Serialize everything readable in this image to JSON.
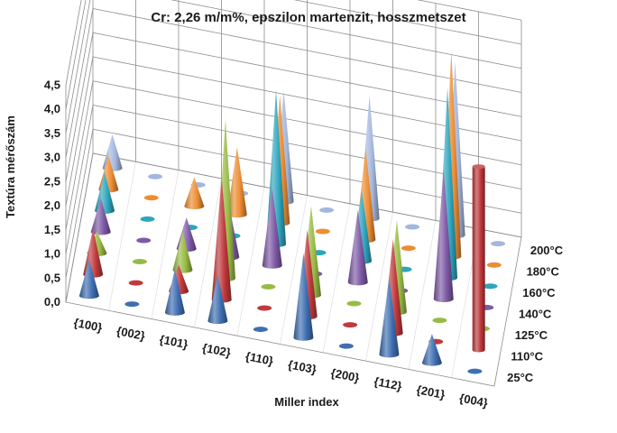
{
  "chart_data": {
    "type": "3d-cone",
    "title": "Cr: 2,26 m/m%, epszilon martenzit, hosszmetszet",
    "xlabel": "Miller index",
    "ylabel": "Textúra mérőszám",
    "categories": [
      "{100}",
      "{002}",
      "{101}",
      "{102}",
      "{110}",
      "{103}",
      "{200}",
      "{112}",
      "{201}",
      "{004}"
    ],
    "ylim": [
      0,
      4.5
    ],
    "yticks": [
      "0,0",
      "0,5",
      "1,0",
      "1,5",
      "2,0",
      "2,5",
      "3,0",
      "3,5",
      "4,0",
      "4,5"
    ],
    "grid": true,
    "series": [
      {
        "name": "25°C",
        "color": "#3f6fb2",
        "values": [
          0.75,
          0.05,
          0.9,
          0.95,
          0.05,
          1.75,
          0.05,
          1.6,
          0.6,
          0.05
        ]
      },
      {
        "name": "110°C",
        "color": "#c0393b",
        "values": [
          0.95,
          0.05,
          0.55,
          2.55,
          0.05,
          1.8,
          0.05,
          1.95,
          0.05,
          3.8
        ]
      },
      {
        "name": "125°C",
        "color": "#98bb45",
        "values": [
          0.45,
          0.05,
          0.8,
          3.3,
          0.05,
          1.85,
          0.05,
          1.9,
          0.05,
          0.05
        ]
      },
      {
        "name": "140°C",
        "color": "#7e5aa6",
        "values": [
          0.7,
          0.05,
          0.65,
          1.05,
          1.6,
          0.05,
          1.5,
          0.05,
          2.7,
          0.05
        ]
      },
      {
        "name": "160°C",
        "color": "#2fa5bd",
        "values": [
          0.8,
          0.05,
          0.05,
          0.05,
          3.2,
          0.05,
          1.45,
          0.05,
          3.95,
          0.05
        ]
      },
      {
        "name": "180°C",
        "color": "#ed8d33",
        "values": [
          0.7,
          0.05,
          0.6,
          1.4,
          2.65,
          0.05,
          1.9,
          0.05,
          4.25,
          0.05
        ]
      },
      {
        "name": "200°C",
        "color": "#a3b7de",
        "values": [
          0.7,
          0.05,
          0.05,
          0.05,
          2.3,
          0.05,
          2.55,
          0.05,
          3.6,
          0.05
        ]
      }
    ]
  }
}
